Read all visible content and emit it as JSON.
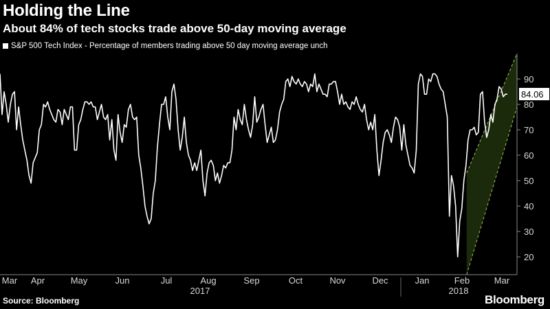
{
  "header": {
    "title": "Holding the Line",
    "subtitle": "About 84% of tech stocks trade above 50-day moving average"
  },
  "footer": {
    "source": "Source: Bloomberg",
    "brand": "Bloomberg"
  },
  "colors": {
    "background": "#000000",
    "line": "#ffffff",
    "channel_fill": "#1a2a0a",
    "channel_border": "#9bbf5a"
  },
  "chart_data": {
    "type": "line",
    "title": "Holding the Line",
    "subtitle": "About 84% of tech stocks trade above 50-day moving average",
    "series": [
      {
        "name": "S&P 500 Tech Index - Percentage of members trading above 50 day moving average unch",
        "values": [
          92,
          76,
          85,
          80,
          73,
          80,
          84,
          85,
          70,
          79,
          72,
          66,
          62,
          58,
          52,
          49,
          57,
          59,
          61,
          70,
          72,
          80,
          79,
          81,
          78,
          76,
          74,
          73,
          78,
          77,
          72,
          78,
          76,
          74,
          79,
          79,
          62,
          62,
          72,
          74,
          78,
          81,
          81,
          80,
          81,
          79,
          79,
          74,
          77,
          80,
          75,
          74,
          76,
          66,
          74,
          62,
          58,
          76,
          69,
          65,
          72,
          71,
          78,
          80,
          75,
          74,
          75,
          60,
          55,
          48,
          40,
          36,
          33,
          35,
          45,
          50,
          63,
          72,
          80,
          80,
          83,
          75,
          70,
          85,
          88,
          82,
          70,
          62,
          67,
          75,
          65,
          60,
          58,
          54,
          57,
          54,
          58,
          62,
          50,
          44,
          53,
          57,
          58,
          56,
          50,
          53,
          49,
          52,
          56,
          55,
          57,
          57,
          62,
          75,
          70,
          78,
          74,
          72,
          80,
          74,
          70,
          67,
          72,
          83,
          73,
          75,
          78,
          80,
          72,
          65,
          68,
          71,
          65,
          66,
          70,
          77,
          80,
          82,
          89,
          90,
          87,
          91,
          89,
          88,
          90,
          88,
          87,
          89,
          88,
          85,
          88,
          87,
          92,
          85,
          88,
          86,
          84,
          84,
          83,
          88,
          88,
          89,
          89,
          85,
          80,
          84,
          80,
          81,
          79,
          78,
          81,
          80,
          83,
          80,
          78,
          77,
          80,
          74,
          70,
          73,
          70,
          76,
          62,
          52,
          58,
          65,
          69,
          70,
          68,
          65,
          71,
          75,
          74,
          71,
          62,
          72,
          64,
          60,
          56,
          55,
          53,
          62,
          88,
          92,
          91,
          84,
          84,
          90,
          89,
          92,
          92,
          91,
          88,
          86,
          85,
          80,
          75,
          36,
          52,
          48,
          40,
          20,
          34,
          39,
          50,
          56,
          66,
          70,
          70,
          71,
          68,
          69,
          84,
          85,
          73,
          67,
          70,
          76,
          73,
          80,
          82,
          87,
          86,
          83,
          84,
          84
        ],
        "last_value": 84.06
      }
    ],
    "x_axis": {
      "months": [
        "Mar",
        "Apr",
        "May",
        "Jun",
        "Jul",
        "Aug",
        "Sep",
        "Oct",
        "Nov",
        "Dec",
        "Jan",
        "Feb",
        "Mar"
      ],
      "years": [
        "2017",
        "2018"
      ]
    },
    "y_axis": {
      "ticks": [
        20,
        30,
        40,
        50,
        60,
        70,
        80,
        90
      ],
      "ylim": [
        13,
        100
      ],
      "position": "right"
    },
    "last_value_label": "84.06",
    "annotations": [
      {
        "type": "rising-channel",
        "description": "shaded upward trend channel over Feb-Mar 2018",
        "x_start_index": 226,
        "x_end_index": 255,
        "lower_start": 13,
        "lower_end": 79,
        "upper_start": 53,
        "upper_end": 100
      }
    ],
    "grid": false,
    "legend_placement": "top-left"
  }
}
